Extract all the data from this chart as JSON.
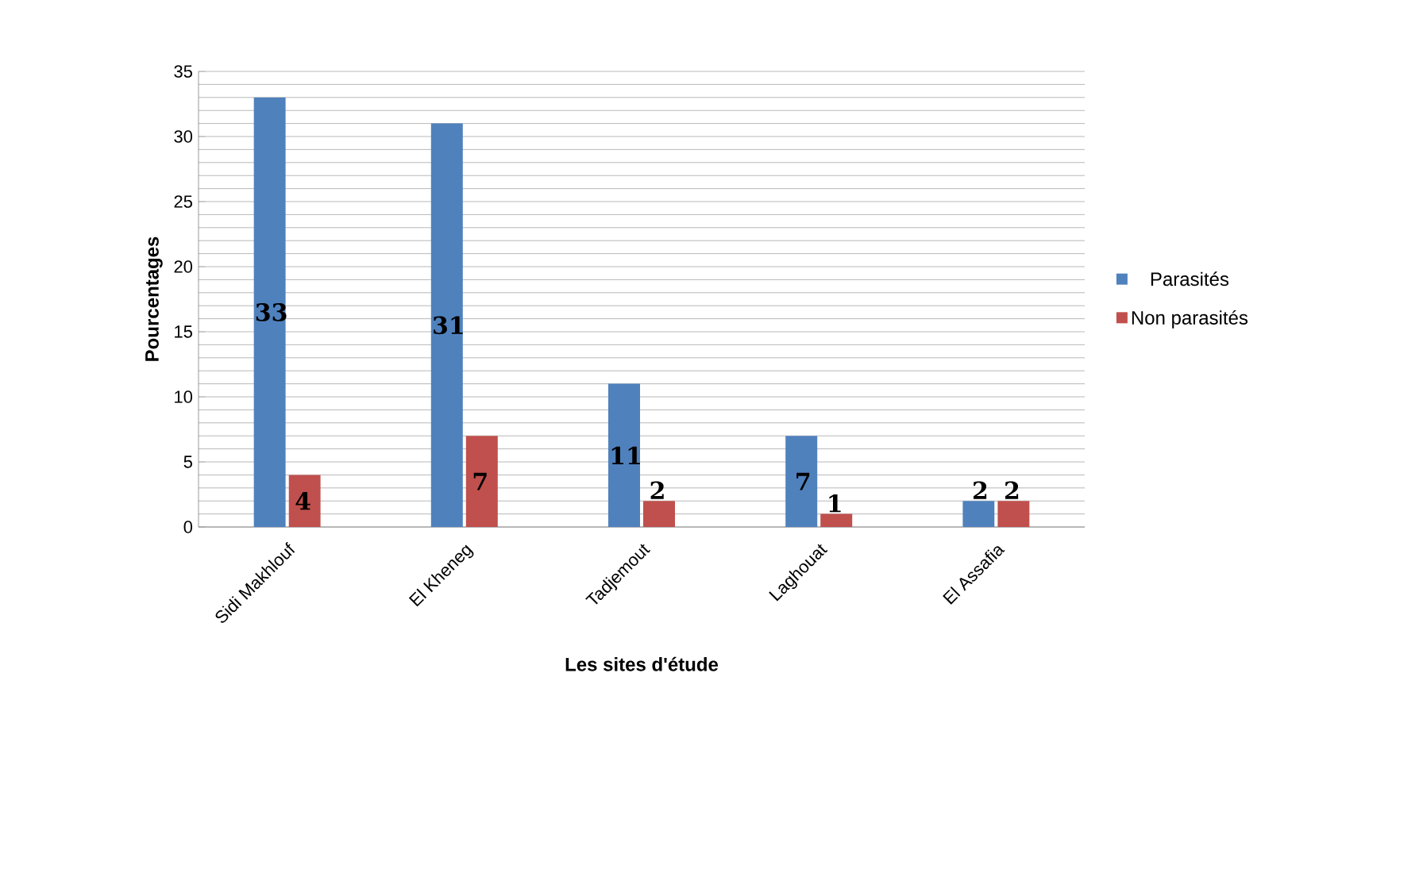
{
  "chart_data": {
    "type": "bar",
    "xlabel": "Les sites d'étude",
    "ylabel": "Pourcentages",
    "categories": [
      "Sidi Makhlouf",
      "El Kheneg",
      "Tadjemout",
      "Laghouat",
      "El Assafia"
    ],
    "series": [
      {
        "name": "Parasités",
        "color": "#4f81bd",
        "values": [
          33,
          31,
          11,
          7,
          2
        ]
      },
      {
        "name": "Non parasités",
        "color": "#c0504d",
        "values": [
          4,
          7,
          2,
          1,
          2
        ]
      }
    ],
    "ylim": [
      0,
      35
    ],
    "yticks": [
      0,
      5,
      10,
      15,
      20,
      25,
      30,
      35
    ],
    "grid": "y",
    "legend": "right",
    "data_labels": true
  }
}
